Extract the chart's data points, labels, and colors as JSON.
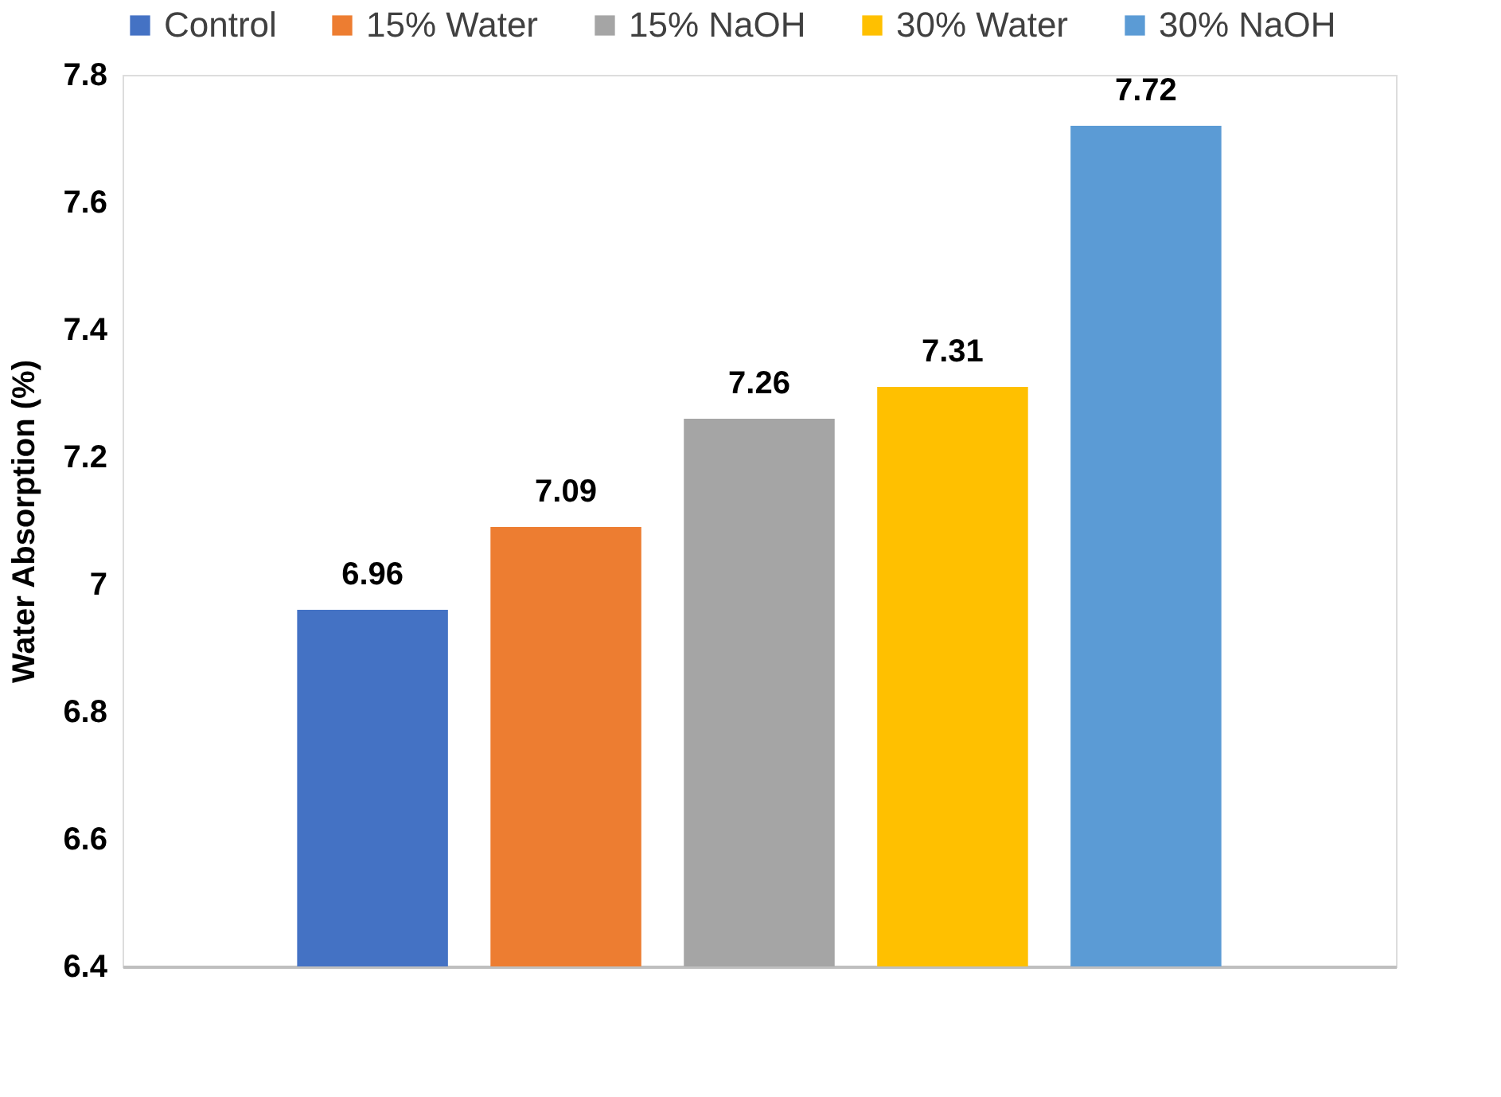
{
  "chart_data": {
    "type": "bar",
    "ylabel": "Water Absorption (%)",
    "categories": [
      null
    ],
    "series": [
      {
        "name": "Control",
        "color": "#4472c4",
        "values": [
          6.96
        ]
      },
      {
        "name": "15% Water",
        "color": "#ed7d31",
        "values": [
          7.09
        ]
      },
      {
        "name": "15% NaOH",
        "color": "#a5a5a5",
        "values": [
          7.26
        ]
      },
      {
        "name": "30% Water",
        "color": "#ffc000",
        "values": [
          7.31
        ]
      },
      {
        "name": "30% NaOH",
        "color": "#5b9bd5",
        "values": [
          7.72
        ]
      }
    ],
    "ylim": [
      6.4,
      7.8
    ],
    "yticks": [
      6.4,
      6.6,
      6.8,
      7,
      7.2,
      7.4,
      7.6,
      7.8
    ],
    "grid": false,
    "legend": "top",
    "data_labels": true,
    "tick_labels": "y"
  }
}
